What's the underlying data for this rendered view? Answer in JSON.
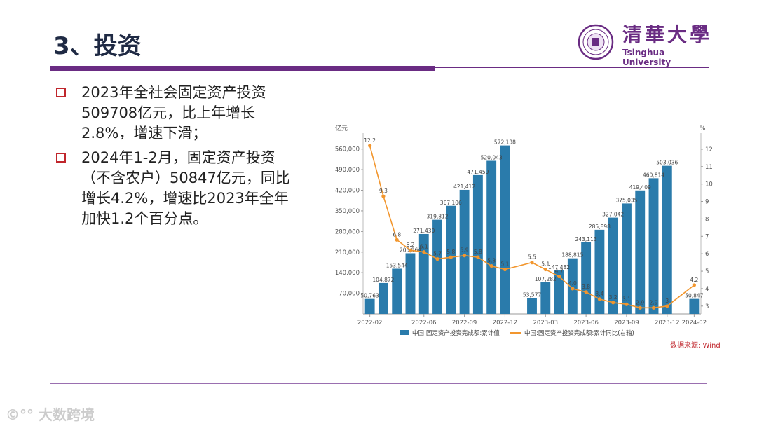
{
  "slide": {
    "title": "3、投资",
    "logo_cn": "清華大學",
    "logo_en": "Tsinghua University",
    "bullets": [
      "2023年全社会固定资产投资509708亿元，比上年增长2.8%，增速下滑；",
      "2024年1-2月，固定资产投资（不含农户）50847亿元，同比增长4.2%，增速比2023年全年加快1.2个百分点。"
    ],
    "source": "数据来源: Wind",
    "watermark": "大数跨境"
  },
  "colors": {
    "accent": "#6a2c83",
    "bar": "#2a7bab",
    "line": "#f2962e",
    "marker": "#c0262c"
  },
  "chart_data": {
    "type": "bar",
    "left_unit": "亿元",
    "right_unit": "%",
    "left_ylim": [
      0,
      595000
    ],
    "left_ticks": [
      "70,000",
      "140,000",
      "210,000",
      "280,000",
      "350,000",
      "420,000",
      "490,000",
      "560,000"
    ],
    "left_tick_values": [
      70000,
      140000,
      210000,
      280000,
      350000,
      420000,
      490000,
      560000
    ],
    "right_ylim": [
      2.55,
      12.6
    ],
    "right_ticks": [
      "3",
      "4",
      "5",
      "6",
      "7",
      "8",
      "9",
      "10",
      "11",
      "12"
    ],
    "right_tick_values": [
      3,
      4,
      5,
      6,
      7,
      8,
      9,
      10,
      11,
      12
    ],
    "x_labels": [
      "2022-02",
      "2022-06",
      "2022-09",
      "2022-12",
      "2023-03",
      "2023-06",
      "2023-09",
      "2023-12",
      "2024-02"
    ],
    "x_label_slots": [
      0,
      4,
      7,
      10,
      13,
      16,
      19,
      22,
      24
    ],
    "slot_count": 25,
    "series": [
      {
        "name": "中国:固定资产投资完成额:累计值",
        "type": "bar",
        "slots": [
          0,
          1,
          2,
          3,
          4,
          5,
          6,
          7,
          8,
          9,
          10,
          12,
          13,
          14,
          15,
          16,
          17,
          18,
          19,
          20,
          21,
          22,
          24
        ],
        "values": [
          50763,
          104872,
          153544,
          205964,
          271430,
          319812,
          367106,
          421412,
          471459,
          520043,
          572138,
          53577,
          107282,
          147482,
          188815,
          243113,
          285898,
          327042,
          375035,
          419409,
          460814,
          503036,
          50847
        ],
        "labels": [
          "50,763",
          "104,872",
          "153,544",
          "205,964",
          "271,430",
          "319,812",
          "367,106",
          "421,412",
          "471,459",
          "520,043",
          "572,138",
          "53,577",
          "107,282",
          "147,482",
          "188,815",
          "243,113",
          "285,898",
          "327,042",
          "375,035",
          "419,409",
          "460,814",
          "503,036",
          "50,847"
        ]
      },
      {
        "name": "中国:固定资产投资完成额:累计同比(右轴)",
        "type": "line",
        "slots": [
          0,
          1,
          2,
          3,
          4,
          5,
          6,
          7,
          8,
          9,
          10,
          12,
          13,
          14,
          15,
          16,
          17,
          18,
          19,
          20,
          21,
          22,
          24
        ],
        "values": [
          12.2,
          9.3,
          6.8,
          6.2,
          6.1,
          5.7,
          5.8,
          5.9,
          5.8,
          5.3,
          5.1,
          5.5,
          5.1,
          4.7,
          4.0,
          3.8,
          3.4,
          3.2,
          3.1,
          2.9,
          2.9,
          3.0,
          4.2
        ],
        "labels": [
          "12.2",
          "9.3",
          "6.8",
          "6.2",
          "6.1",
          "5.7",
          "5.8",
          "5.9",
          "5.8",
          "5.3",
          "5.1",
          "5.5",
          "5.1",
          "4.7",
          "4.0",
          "3.8",
          "3.4",
          "3.2",
          "3.1",
          "2.9",
          "2.9",
          "3",
          "4.2"
        ]
      }
    ]
  }
}
